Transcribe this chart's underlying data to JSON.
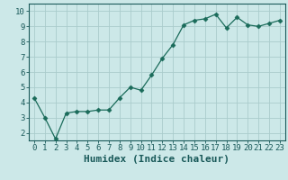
{
  "x": [
    0,
    1,
    2,
    3,
    4,
    5,
    6,
    7,
    8,
    9,
    10,
    11,
    12,
    13,
    14,
    15,
    16,
    17,
    18,
    19,
    20,
    21,
    22,
    23
  ],
  "y": [
    4.3,
    3.0,
    1.6,
    3.3,
    3.4,
    3.4,
    3.5,
    3.5,
    4.3,
    5.0,
    4.8,
    5.8,
    6.9,
    7.8,
    9.1,
    9.4,
    9.5,
    9.8,
    8.9,
    9.6,
    9.1,
    9.0,
    9.2,
    9.4
  ],
  "title": "",
  "xlabel": "Humidex (Indice chaleur)",
  "ylabel": "",
  "xlim": [
    -0.5,
    23.5
  ],
  "ylim": [
    1.5,
    10.5
  ],
  "yticks": [
    2,
    3,
    4,
    5,
    6,
    7,
    8,
    9,
    10
  ],
  "xticks": [
    0,
    1,
    2,
    3,
    4,
    5,
    6,
    7,
    8,
    9,
    10,
    11,
    12,
    13,
    14,
    15,
    16,
    17,
    18,
    19,
    20,
    21,
    22,
    23
  ],
  "line_color": "#1a6b5a",
  "marker": "D",
  "marker_size": 2.5,
  "background_color": "#cce8e8",
  "grid_color": "#aacccc",
  "axis_color": "#1a5a5a",
  "xlabel_fontsize": 8,
  "tick_fontsize": 6.5
}
